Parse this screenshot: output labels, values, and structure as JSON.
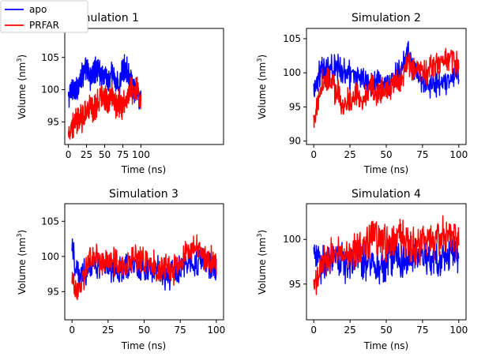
{
  "legend": {
    "entries": [
      {
        "label": "apo",
        "color": "#0000ff"
      },
      {
        "label": "PRFAR",
        "color": "#ff0000"
      }
    ]
  },
  "chart_data": [
    {
      "type": "line",
      "title": "Simulation 1",
      "xlabel": "Time (ns)",
      "ylabel": "Volume (nm",
      "ylabel_sup": "3",
      "ylabel_close": ")",
      "xlim": [
        -5,
        105
      ],
      "ylim": [
        91.5,
        109.5
      ],
      "xticks": [
        0,
        25,
        50,
        75,
        100
      ],
      "yticks": [
        95,
        100,
        105
      ],
      "series": [
        {
          "name": "apo",
          "color": "#0000ff",
          "x": [
            0,
            5,
            10,
            15,
            20,
            25,
            30,
            35,
            40,
            45,
            50,
            55,
            60,
            65,
            70,
            75,
            80,
            85,
            90,
            95,
            100
          ],
          "y": [
            98.5,
            100.5,
            99.5,
            101.5,
            102.5,
            103.0,
            102.0,
            102.5,
            103.5,
            102.5,
            102.5,
            101.0,
            102.5,
            101.5,
            100.5,
            103.0,
            103.5,
            101.5,
            100.0,
            99.5,
            98.0
          ]
        },
        {
          "name": "PRFAR",
          "color": "#ff0000",
          "x": [
            0,
            5,
            10,
            15,
            20,
            25,
            30,
            35,
            40,
            45,
            50,
            55,
            60,
            65,
            70,
            75,
            80,
            85,
            90,
            95,
            100
          ],
          "y": [
            93.0,
            94.5,
            95.0,
            96.0,
            95.5,
            96.5,
            97.5,
            97.0,
            98.0,
            98.5,
            99.0,
            98.0,
            99.5,
            97.5,
            98.0,
            97.5,
            99.0,
            100.0,
            99.5,
            100.5,
            97.5
          ]
        }
      ]
    },
    {
      "type": "line",
      "title": "Simulation 2",
      "xlabel": "Time (ns)",
      "ylabel": "Volume (nm",
      "ylabel_sup": "3",
      "ylabel_close": ")",
      "xlim": [
        -5,
        105
      ],
      "ylim": [
        89.5,
        106.5
      ],
      "xticks": [
        0,
        25,
        50,
        75,
        100
      ],
      "yticks": [
        90,
        95,
        100,
        105
      ],
      "series": [
        {
          "name": "apo",
          "color": "#0000ff",
          "x": [
            0,
            5,
            10,
            15,
            20,
            25,
            30,
            35,
            40,
            45,
            50,
            55,
            60,
            65,
            70,
            75,
            80,
            85,
            90,
            95,
            100
          ],
          "y": [
            98.0,
            100.5,
            100.0,
            101.0,
            100.5,
            99.5,
            99.0,
            99.5,
            98.5,
            99.0,
            98.5,
            99.0,
            100.5,
            102.5,
            100.5,
            98.5,
            98.0,
            98.5,
            98.0,
            99.0,
            100.5
          ]
        },
        {
          "name": "PRFAR",
          "color": "#ff0000",
          "x": [
            0,
            5,
            10,
            15,
            20,
            25,
            30,
            35,
            40,
            45,
            50,
            55,
            60,
            65,
            70,
            75,
            80,
            85,
            90,
            95,
            100
          ],
          "y": [
            93.0,
            98.5,
            99.0,
            97.5,
            95.5,
            96.0,
            96.5,
            96.0,
            97.5,
            97.0,
            97.5,
            98.0,
            99.0,
            101.5,
            100.5,
            100.0,
            100.5,
            101.5,
            101.5,
            102.0,
            100.5
          ]
        }
      ]
    },
    {
      "type": "line",
      "title": "Simulation 3",
      "xlabel": "Time (ns)",
      "ylabel": "Volume (nm",
      "ylabel_sup": "3",
      "ylabel_close": ")",
      "xlim": [
        -5,
        105
      ],
      "ylim": [
        91.0,
        107.5
      ],
      "xticks": [
        0,
        25,
        50,
        75,
        100
      ],
      "yticks": [
        95,
        100,
        105
      ],
      "series": [
        {
          "name": "apo",
          "color": "#0000ff",
          "x": [
            0,
            5,
            10,
            15,
            20,
            25,
            30,
            35,
            40,
            45,
            50,
            55,
            60,
            65,
            70,
            75,
            80,
            85,
            90,
            95,
            100
          ],
          "y": [
            101.0,
            97.0,
            98.0,
            98.5,
            99.0,
            98.5,
            98.0,
            98.0,
            99.0,
            98.5,
            98.0,
            97.5,
            98.5,
            97.0,
            97.5,
            98.0,
            99.5,
            99.0,
            99.5,
            99.0,
            98.0
          ]
        },
        {
          "name": "PRFAR",
          "color": "#ff0000",
          "x": [
            0,
            5,
            10,
            15,
            20,
            25,
            30,
            35,
            40,
            45,
            50,
            55,
            60,
            65,
            70,
            75,
            80,
            85,
            90,
            95,
            100
          ],
          "y": [
            96.0,
            95.0,
            98.5,
            100.0,
            99.5,
            99.0,
            99.5,
            98.5,
            99.0,
            100.0,
            99.5,
            99.0,
            98.0,
            98.5,
            98.0,
            99.0,
            100.5,
            101.5,
            100.5,
            99.5,
            99.0
          ]
        }
      ]
    },
    {
      "type": "line",
      "title": "Simulation 4",
      "xlabel": "Time (ns)",
      "ylabel": "Volume (nm",
      "ylabel_sup": "3",
      "ylabel_close": ")",
      "xlim": [
        -5,
        105
      ],
      "ylim": [
        91.0,
        104.0
      ],
      "xticks": [
        0,
        25,
        50,
        75,
        100
      ],
      "yticks": [
        95,
        100
      ],
      "series": [
        {
          "name": "apo",
          "color": "#0000ff",
          "x": [
            0,
            5,
            10,
            15,
            20,
            25,
            30,
            35,
            40,
            45,
            50,
            55,
            60,
            65,
            70,
            75,
            80,
            85,
            90,
            95,
            100
          ],
          "y": [
            98.5,
            97.0,
            98.0,
            97.5,
            97.5,
            97.0,
            98.0,
            97.5,
            98.0,
            97.0,
            97.5,
            98.0,
            97.5,
            98.0,
            98.5,
            98.0,
            97.5,
            98.0,
            98.0,
            99.0,
            98.0
          ]
        },
        {
          "name": "PRFAR",
          "color": "#ff0000",
          "x": [
            0,
            5,
            10,
            15,
            20,
            25,
            30,
            35,
            40,
            45,
            50,
            55,
            60,
            65,
            70,
            75,
            80,
            85,
            90,
            95,
            100
          ],
          "y": [
            94.5,
            97.0,
            98.0,
            98.5,
            98.0,
            98.5,
            99.0,
            99.0,
            100.5,
            100.0,
            99.5,
            99.5,
            100.5,
            99.5,
            99.0,
            99.5,
            100.0,
            99.5,
            100.5,
            101.0,
            99.5
          ]
        }
      ]
    }
  ]
}
